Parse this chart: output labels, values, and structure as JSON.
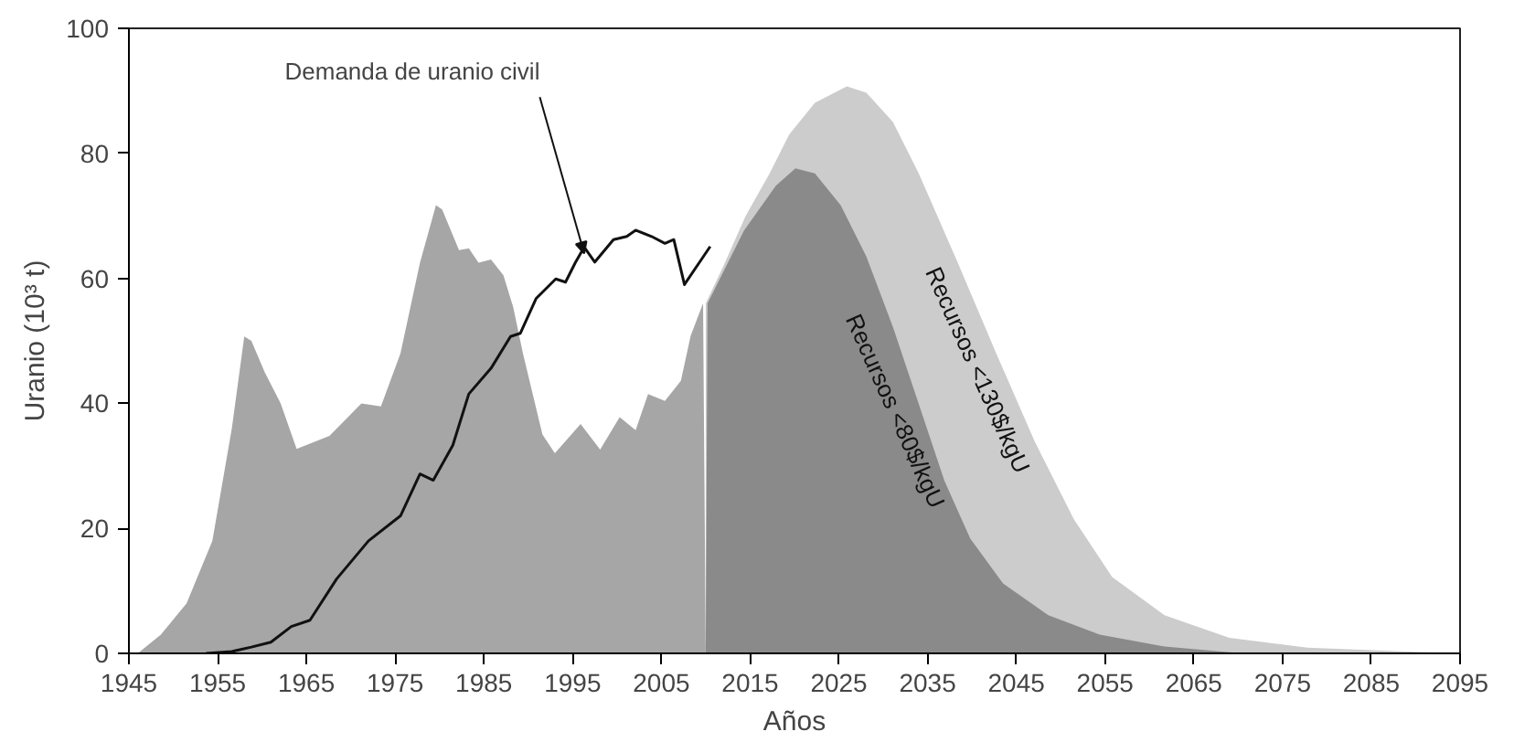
{
  "chart_data": {
    "type": "area",
    "xlabel": "Años",
    "ylabel": "Uranio (10³ t)",
    "xlim": [
      1945,
      2095
    ],
    "xticks": [
      1945,
      1955,
      1965,
      1975,
      1985,
      1995,
      2005,
      2015,
      2025,
      2035,
      2045,
      2055,
      2065,
      2075,
      2085,
      2095
    ],
    "ylim": [
      0,
      100
    ],
    "yticks": [
      0,
      20,
      40,
      60,
      80,
      100
    ],
    "grid": false,
    "annotations": [
      {
        "text": "Demanda de uranio civil",
        "x": 1996.3,
        "y": 64
      }
    ],
    "series": [
      {
        "color": "#a6a6a6",
        "x": [
          1946,
          1948.6,
          1951.5,
          1954.4,
          1956.6,
          1958,
          1958.8,
          1960.3,
          1962.1,
          1963.9,
          1967.6,
          1971.2,
          1973.4,
          1975.6,
          1977.8,
          1979.6,
          1980.3,
          1982.2,
          1983.3,
          1984.4,
          1985.8,
          1987.2,
          1988.3,
          1989.4,
          1991.6,
          1993,
          1995.9,
          1998.1,
          2000.3,
          2002.1,
          2003.5,
          2005.4,
          2007.2,
          2008.3,
          2009.7,
          2010
        ],
        "values": [
          0,
          3,
          8,
          18,
          36,
          50.7,
          50,
          45,
          40,
          32.7,
          34.8,
          40,
          39.5,
          48,
          62.5,
          71.7,
          71,
          64.5,
          64.8,
          62.5,
          63,
          60.5,
          55.4,
          48,
          35,
          32,
          36.7,
          32.6,
          37.8,
          35.7,
          41.5,
          40.4,
          43.6,
          50.8,
          56,
          0
        ]
      },
      {
        "name": "Recursos <130$/kgU",
        "color": "#cccccc",
        "x": [
          2010,
          2012,
          2014.5,
          2017.2,
          2019.4,
          2022.3,
          2025.9,
          2028.1,
          2031.1,
          2034,
          2038.4,
          2042.7,
          2047.1,
          2051.5,
          2055.8,
          2061.7,
          2069,
          2077.8,
          2094.6
        ],
        "values": [
          56,
          62,
          70,
          76.8,
          83,
          88.1,
          90.7,
          89.7,
          85,
          76.8,
          62.5,
          48.1,
          33.8,
          21.4,
          12.2,
          6.1,
          2.5,
          0.9,
          0
        ]
      },
      {
        "name": "Recursos <80$/kgU",
        "color": "#8a8a8a",
        "x": [
          2010,
          2010.2,
          2014.3,
          2017.9,
          2020.1,
          2022.3,
          2025.2,
          2028.1,
          2031.1,
          2034,
          2036.9,
          2039.8,
          2043.5,
          2048.6,
          2054.4,
          2061.7,
          2070.5
        ],
        "values": [
          0,
          56,
          67.6,
          74.8,
          77.6,
          76.8,
          71.7,
          63.5,
          52.2,
          39.9,
          27.6,
          18.4,
          11.2,
          6.1,
          3,
          1.1,
          0
        ]
      },
      {
        "type": "line",
        "color": "#111111",
        "x": [
          1953.7,
          1956.6,
          1958.8,
          1961,
          1963.3,
          1965.4,
          1968.4,
          1972,
          1975.6,
          1977.8,
          1979.3,
          1981.5,
          1983.3,
          1985.8,
          1988,
          1989.1,
          1990.9,
          1993.1,
          1994.2,
          1995.3,
          1996.3,
          1997.5,
          1999.6,
          2001.1,
          2002.1,
          2003.9,
          2005.4,
          2006.4,
          2007.6,
          2010.5
        ],
        "values": [
          0,
          0.3,
          1,
          1.8,
          4.3,
          5.3,
          11.9,
          18,
          22,
          28.7,
          27.7,
          33.3,
          41.5,
          45.6,
          50.7,
          51.2,
          56.8,
          59.9,
          59.4,
          62.5,
          65,
          62.6,
          66.2,
          66.7,
          67.7,
          66.7,
          65.6,
          66.2,
          59,
          65.1
        ]
      }
    ]
  }
}
